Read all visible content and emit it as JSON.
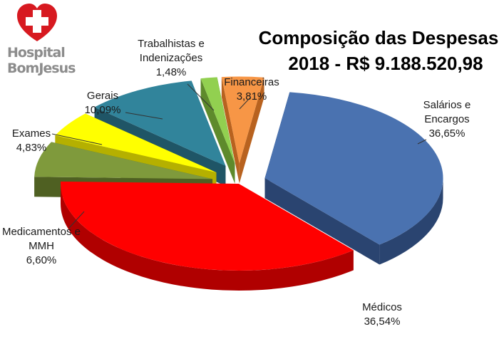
{
  "logo": {
    "line1": "Hospital",
    "line2": "BomJesus",
    "color": "#d71920"
  },
  "chart_data": {
    "type": "pie",
    "title": "Composição das Despesas",
    "subtitle": "2018 - R$ 9.188.520,98",
    "slices": [
      {
        "name": "Salários e Encargos",
        "label_lines": [
          "Salários e",
          "Encargos"
        ],
        "percent_label": "36,65%",
        "value": 36.65,
        "color": "#4a72b0",
        "side": "#2a4470",
        "exploded": true
      },
      {
        "name": "Médicos",
        "label_lines": [
          "Médicos"
        ],
        "percent_label": "36,54%",
        "value": 36.54,
        "color": "#ff0000",
        "side": "#b00000",
        "exploded": false
      },
      {
        "name": "Medicamentos e MMH",
        "label_lines": [
          "Medicamentos e",
          "MMH"
        ],
        "percent_label": "6,60%",
        "value": 6.6,
        "color": "#7f9a3c",
        "side": "#4f6022",
        "exploded": true
      },
      {
        "name": "Exames",
        "label_lines": [
          "Exames"
        ],
        "percent_label": "4,83%",
        "value": 4.83,
        "color": "#ffff00",
        "side": "#b5b000",
        "exploded": true
      },
      {
        "name": "Gerais",
        "label_lines": [
          "Gerais"
        ],
        "percent_label": "10,09%",
        "value": 10.09,
        "color": "#31849b",
        "side": "#1f5566",
        "exploded": true
      },
      {
        "name": "Trabalhistas e Indenizações",
        "label_lines": [
          "Trabalhistas e",
          "Indenizações"
        ],
        "percent_label": "1,48%",
        "value": 1.48,
        "color": "#92d050",
        "side": "#5e8a2c",
        "exploded": true
      },
      {
        "name": "Financeiras",
        "label_lines": [
          "Financeiras"
        ],
        "percent_label": "3,81%",
        "value": 3.81,
        "color": "#f79646",
        "side": "#b8621f",
        "exploded": true
      }
    ]
  }
}
